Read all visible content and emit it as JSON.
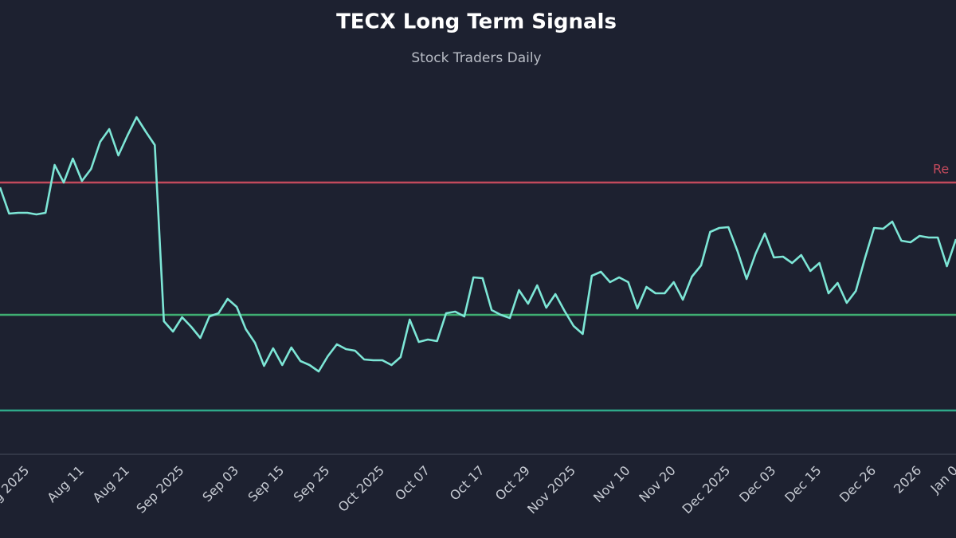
{
  "chart_data": {
    "type": "line",
    "title": "TECX Long Term Signals",
    "subtitle": "Stock Traders Daily",
    "categories": [
      null,
      null,
      null,
      "g 2025",
      null,
      null,
      null,
      null,
      null,
      "Aug 11",
      null,
      null,
      null,
      null,
      "Aug 21",
      null,
      null,
      null,
      null,
      null,
      "Sep 2025",
      null,
      null,
      null,
      null,
      null,
      "Sep 03",
      null,
      null,
      null,
      null,
      "Sep 15",
      null,
      null,
      null,
      null,
      "Sep 25",
      null,
      null,
      null,
      null,
      null,
      "Oct 2025",
      null,
      null,
      null,
      null,
      "Oct 07",
      null,
      null,
      null,
      null,
      null,
      "Oct 17",
      null,
      null,
      null,
      null,
      "Oct 29",
      null,
      null,
      null,
      null,
      "Nov 2025",
      null,
      null,
      null,
      null,
      null,
      "Nov 10",
      null,
      null,
      null,
      null,
      "Nov 20",
      null,
      null,
      null,
      null,
      null,
      "Dec 2025",
      null,
      null,
      null,
      null,
      "Dec 03",
      null,
      null,
      null,
      null,
      "Dec 15",
      null,
      null,
      null,
      null,
      null,
      "Dec 26",
      null,
      null,
      null,
      null,
      "2026",
      null,
      null,
      null,
      "Jan 0"
    ],
    "values": [
      335,
      302,
      303,
      303,
      301,
      303,
      363,
      341,
      371,
      343,
      358,
      392,
      408,
      375,
      400,
      423,
      405,
      388,
      167,
      154,
      172,
      160,
      146,
      173,
      177,
      195,
      185,
      157,
      140,
      111,
      133,
      112,
      134,
      117,
      112,
      104,
      123,
      138,
      132,
      130,
      119,
      118,
      118,
      112,
      122,
      169,
      141,
      144,
      142,
      177,
      179,
      173,
      222,
      221,
      181,
      175,
      171,
      206,
      189,
      212,
      184,
      201,
      180,
      161,
      151,
      224,
      229,
      216,
      222,
      216,
      183,
      210,
      202,
      202,
      216,
      194,
      223,
      237,
      279,
      284,
      285,
      255,
      220,
      252,
      277,
      247,
      248,
      240,
      250,
      230,
      240,
      202,
      215,
      190,
      205,
      246,
      284,
      283,
      292,
      268,
      266,
      274,
      272,
      272,
      236,
      270
    ],
    "color": "#7de6d6",
    "ylim": [
      0,
      470
    ],
    "hlines": [
      {
        "value": 341,
        "color": "#c24a5c",
        "label": "Re"
      },
      {
        "value": 175,
        "color": "#3fae72"
      },
      {
        "value": 55,
        "color": "#2fa98a"
      }
    ]
  }
}
